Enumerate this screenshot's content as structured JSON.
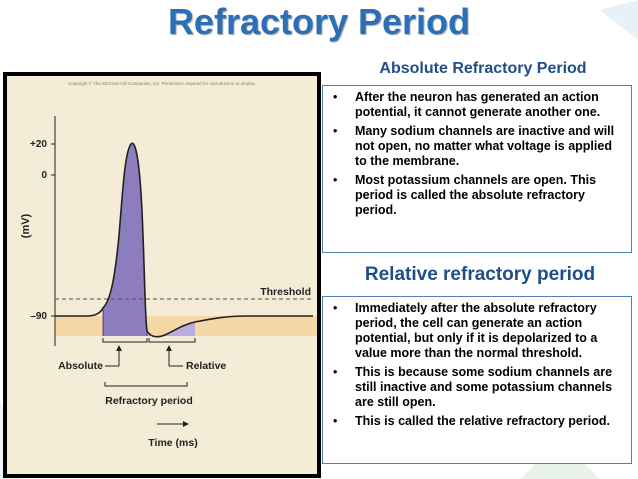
{
  "slide": {
    "title": "Refractory Period",
    "absolute": {
      "heading": "Absolute Refractory Period",
      "bullets": [
        "After the neuron has generated an action potential, it cannot generate another one.",
        "Many sodium channels are inactive and will not open, no matter what voltage is applied to the membrane.",
        "Most potassium channels are open. This period is called the absolute refractory period."
      ]
    },
    "relative": {
      "heading": "Relative refractory period",
      "bullets": [
        "Immediately after the absolute refractory period, the cell can generate an action potential, but only if it is depolarized to a value more than the normal threshold.",
        "This is because some sodium channels are still inactive and some potassium channels are still open.",
        "This is called the relative refractory period."
      ]
    },
    "bullet_char": "•"
  },
  "figure": {
    "copyright": "Copyright © The McGraw-Hill Companies, Inc. Permission required for reproduction or display.",
    "y_axis_label": "(mV)",
    "y_ticks": [
      "+20",
      "0",
      "–90"
    ],
    "threshold_label": "Threshold",
    "absolute_label": "Absolute",
    "relative_label": "Relative",
    "period_label": "Refractory period",
    "x_axis_label": "Time (ms)",
    "colors": {
      "background": "#f5ecd7",
      "absolute_fill": "#8c7dbf",
      "relative_fill": "#b9addf",
      "resting_band": "#f6d7a6",
      "title": "#2b6fb6",
      "heading": "#1f4e8a"
    }
  }
}
